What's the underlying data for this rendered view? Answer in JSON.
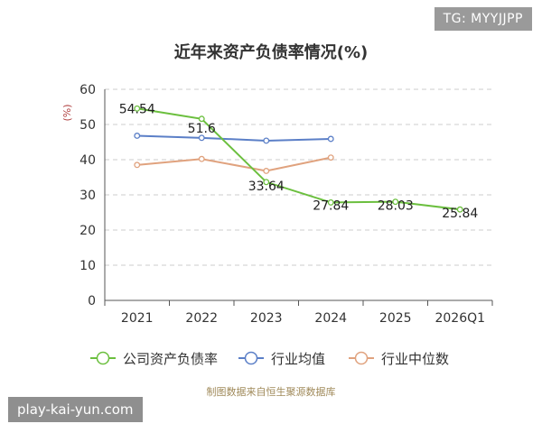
{
  "header": {
    "tag": "TG: MYYJJPP"
  },
  "footer": {
    "source": "制图数据来自恒生聚源数据库",
    "watermark": "play-kai-yun.com"
  },
  "chart_data": {
    "type": "line",
    "title": "近年来资产负债率情况(%)",
    "ylabel": "(%)",
    "xlabel": "",
    "categories": [
      "2021",
      "2022",
      "2023",
      "2024",
      "2025",
      "2026Q1"
    ],
    "ylim": [
      0,
      60
    ],
    "yticks": [
      0,
      10,
      20,
      30,
      40,
      50,
      60
    ],
    "grid": true,
    "legend_position": "bottom",
    "series": [
      {
        "name": "公司资产负债率",
        "color": "#6bbf3e",
        "values": [
          54.54,
          51.6,
          33.64,
          27.84,
          28.03,
          25.84
        ],
        "labels": [
          "54.54",
          "51.6",
          "33.64",
          "27.84",
          "28.03",
          "25.84"
        ]
      },
      {
        "name": "行业均值",
        "color": "#5b7fc7",
        "values": [
          46.8,
          46.2,
          45.4,
          45.9,
          null,
          null
        ]
      },
      {
        "name": "行业中位数",
        "color": "#e0a27e",
        "values": [
          38.5,
          40.2,
          36.8,
          40.6,
          null,
          null
        ]
      }
    ]
  }
}
